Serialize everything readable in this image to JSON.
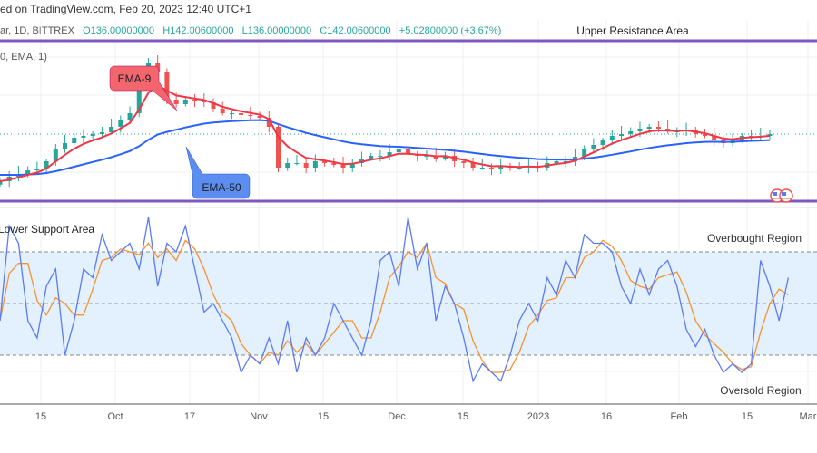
{
  "header": {
    "published": "ed on TradingView.com, Feb 20, 2023 12:40 UTC+1"
  },
  "legend": {
    "symbol": "ar, 1D, BITTREX",
    "open": "O136.00000000",
    "high": "H142.00600000",
    "low": "L136.00000000",
    "close": "C142.00600000",
    "change": "+5.02800000 (+3.67%)"
  },
  "indicator_label": "0, EMA, 1)",
  "annotations": {
    "upper": "Upper Resistance Area",
    "lower": "Lower Support Area",
    "ema9": "EMA-9",
    "ema50": "EMA-50",
    "overbought": "Overbought Region",
    "oversold": "Oversold Region"
  },
  "colors": {
    "up": "#26a69a",
    "down": "#ef5350",
    "ema9": "#f23645",
    "ema50": "#2962ff",
    "zone": "#7e57c2",
    "stochK": "#5b7bf5",
    "stochD": "#f7922f",
    "band": "#e3f0fd"
  },
  "chart_data": [
    {
      "type": "candlestick",
      "x_ticks": [
        "15",
        "Oct",
        "17",
        "Nov",
        "15",
        "Dec",
        "15",
        "2023",
        "16",
        "Feb",
        "15",
        "Mar"
      ],
      "closes": [
        121.2,
        123.2,
        124.4,
        126,
        126.8,
        130,
        135.2,
        138,
        140.4,
        141.2,
        142,
        142.8,
        145.2,
        148.4,
        151.2,
        163.2,
        173.2,
        169.2,
        157.2,
        155.2,
        157.2,
        156.4,
        156,
        153.2,
        151.2,
        151.2,
        150.4,
        150,
        149.2,
        145.2,
        127.2,
        129.2,
        129.2,
        127.2,
        130,
        129.2,
        128.4,
        127.2,
        129.2,
        131.2,
        132.4,
        132.4,
        134,
        135.2,
        133.2,
        132.4,
        132.4,
        131.2,
        132.4,
        130,
        129.2,
        127.2,
        127.2,
        126.4,
        128,
        127.2,
        127.2,
        128,
        127.2,
        129.2,
        130,
        130,
        132,
        135.2,
        137.2,
        139.2,
        141.2,
        142,
        143.2,
        144.4,
        145.2,
        144.4,
        143.2,
        143.2,
        144,
        142,
        141.2,
        139.2,
        138,
        139.2,
        141.2,
        141.2,
        141.2,
        142
      ],
      "last_price": 142.006,
      "resistance_level": 183,
      "support_level": 112,
      "series": [
        {
          "name": "EMA-9"
        },
        {
          "name": "EMA-50"
        }
      ]
    },
    {
      "type": "line",
      "ylim": [
        0,
        100
      ],
      "levels": [
        80,
        50,
        20
      ],
      "k_values": [
        40,
        95,
        85,
        40,
        30,
        60,
        70,
        20,
        40,
        70,
        65,
        90,
        75,
        80,
        85,
        70,
        100,
        60,
        85,
        80,
        95,
        70,
        45,
        50,
        40,
        30,
        10,
        20,
        15,
        30,
        15,
        40,
        10,
        30,
        20,
        30,
        50,
        40,
        30,
        20,
        40,
        75,
        80,
        60,
        100,
        70,
        85,
        40,
        60,
        50,
        30,
        5,
        15,
        10,
        5,
        20,
        40,
        50,
        40,
        65,
        55,
        75,
        65,
        90,
        85,
        85,
        80,
        60,
        50,
        70,
        55,
        70,
        75,
        60,
        35,
        25,
        35,
        20,
        10,
        15,
        10,
        15,
        75,
        60,
        40,
        65
      ]
    }
  ]
}
